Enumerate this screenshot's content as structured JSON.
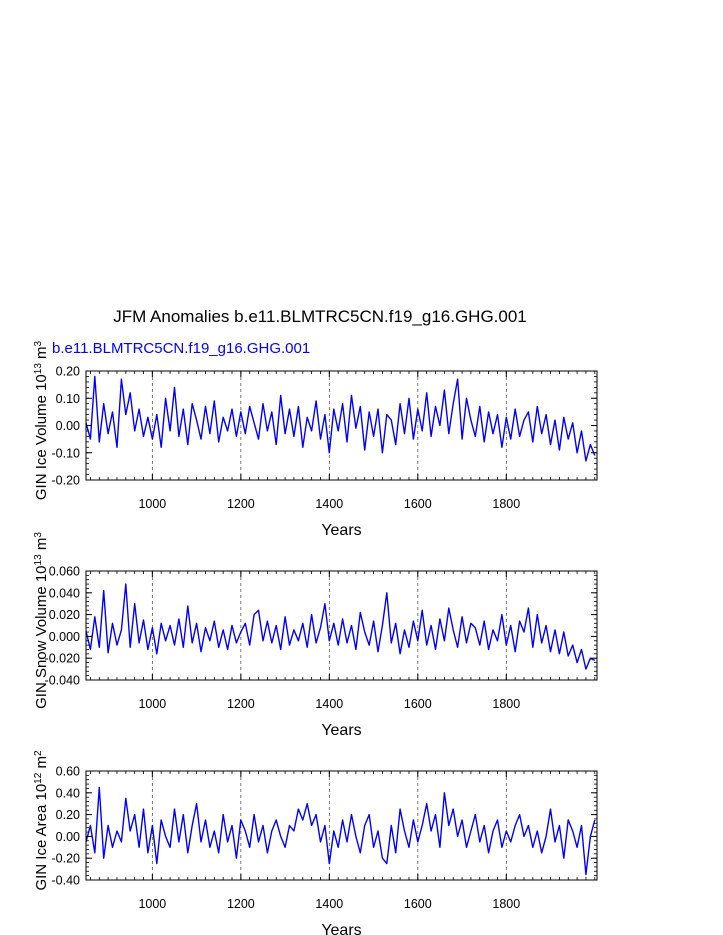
{
  "figure": {
    "title": "JFM Anomalies b.e11.BLMTRC5CN.f19_g16.GHG.001",
    "case_label": "b.e11.BLMTRC5CN.f19_g16.GHG.001"
  },
  "colors": {
    "series": "#0000ff",
    "axes": "#000000",
    "grid": "#555555"
  },
  "chart_data": [
    {
      "type": "line",
      "title": "",
      "xlabel": "Years",
      "ylabel": {
        "text": "GIN Ice Volume 10",
        "exp": "13",
        "unit": " m",
        "unit_exp": "3"
      },
      "xlim": [
        850,
        2005
      ],
      "ylim": [
        -0.2,
        0.2
      ],
      "xticks": [
        1000,
        1200,
        1400,
        1600,
        1800
      ],
      "xtick_labels": [
        "1000",
        "1200",
        "1400",
        "1600",
        "1800"
      ],
      "yticks": [
        -0.2,
        -0.1,
        0.0,
        0.1,
        0.2
      ],
      "ytick_labels": [
        "-0.20",
        "-0.10",
        "0.00",
        "0.10",
        "0.20"
      ],
      "grid": "vertical dashed at x ticks",
      "series": [
        {
          "x": [
            850,
            860,
            870,
            880,
            890,
            900,
            910,
            920,
            930,
            940,
            950,
            960,
            970,
            980,
            990,
            1000,
            1010,
            1020,
            1030,
            1040,
            1050,
            1060,
            1070,
            1080,
            1090,
            1100,
            1110,
            1120,
            1130,
            1140,
            1150,
            1160,
            1170,
            1180,
            1190,
            1200,
            1210,
            1220,
            1230,
            1240,
            1250,
            1260,
            1270,
            1280,
            1290,
            1300,
            1310,
            1320,
            1330,
            1340,
            1350,
            1360,
            1370,
            1380,
            1390,
            1400,
            1410,
            1420,
            1430,
            1440,
            1450,
            1460,
            1470,
            1480,
            1490,
            1500,
            1510,
            1520,
            1530,
            1540,
            1550,
            1560,
            1570,
            1580,
            1590,
            1600,
            1610,
            1620,
            1630,
            1640,
            1650,
            1660,
            1670,
            1680,
            1690,
            1700,
            1710,
            1720,
            1730,
            1740,
            1750,
            1760,
            1770,
            1780,
            1790,
            1800,
            1810,
            1820,
            1830,
            1840,
            1850,
            1860,
            1870,
            1880,
            1890,
            1900,
            1910,
            1920,
            1930,
            1940,
            1950,
            1960,
            1970,
            1980,
            1990,
            2000
          ],
          "values": [
            0.01,
            -0.05,
            0.18,
            -0.06,
            0.08,
            -0.03,
            0.05,
            -0.08,
            0.17,
            0.04,
            0.12,
            -0.02,
            0.06,
            -0.04,
            0.03,
            -0.05,
            0.04,
            -0.08,
            0.1,
            -0.02,
            0.14,
            -0.04,
            0.06,
            -0.07,
            0.08,
            0.02,
            -0.05,
            0.07,
            -0.03,
            0.09,
            -0.06,
            0.03,
            -0.02,
            0.06,
            -0.04,
            0.05,
            -0.03,
            0.07,
            0.01,
            -0.05,
            0.08,
            -0.02,
            0.05,
            -0.07,
            0.11,
            -0.03,
            0.06,
            -0.04,
            0.07,
            -0.08,
            0.03,
            -0.02,
            0.09,
            -0.05,
            0.04,
            -0.1,
            0.06,
            -0.02,
            0.08,
            -0.06,
            0.11,
            -0.01,
            0.07,
            -0.09,
            0.05,
            -0.04,
            0.06,
            -0.1,
            0.04,
            0.02,
            -0.07,
            0.08,
            -0.03,
            0.1,
            -0.05,
            0.06,
            -0.02,
            0.12,
            -0.04,
            0.07,
            0.0,
            0.13,
            -0.03,
            0.08,
            0.17,
            -0.05,
            0.1,
            0.02,
            -0.04,
            0.07,
            -0.06,
            0.05,
            -0.03,
            0.04,
            -0.08,
            0.03,
            -0.05,
            0.06,
            -0.04,
            0.02,
            0.05,
            -0.06,
            0.07,
            -0.03,
            0.04,
            -0.07,
            0.02,
            -0.09,
            0.03,
            -0.05,
            0.01,
            -0.1,
            -0.02,
            -0.13,
            -0.07,
            -0.11
          ]
        }
      ]
    },
    {
      "type": "line",
      "title": "",
      "xlabel": "Years",
      "ylabel": {
        "text": "GIN Snow Volume 10",
        "exp": "13",
        "unit": " m",
        "unit_exp": "3"
      },
      "xlim": [
        850,
        2005
      ],
      "ylim": [
        -0.04,
        0.06
      ],
      "xticks": [
        1000,
        1200,
        1400,
        1600,
        1800
      ],
      "xtick_labels": [
        "1000",
        "1200",
        "1400",
        "1600",
        "1800"
      ],
      "yticks": [
        -0.04,
        -0.02,
        0.0,
        0.02,
        0.04,
        0.06
      ],
      "ytick_labels": [
        "-0.040",
        "-0.020",
        "0.000",
        "0.020",
        "0.040",
        "0.060"
      ],
      "grid": "vertical dashed at x ticks",
      "series": [
        {
          "x": [
            850,
            860,
            870,
            880,
            890,
            900,
            910,
            920,
            930,
            940,
            950,
            960,
            970,
            980,
            990,
            1000,
            1010,
            1020,
            1030,
            1040,
            1050,
            1060,
            1070,
            1080,
            1090,
            1100,
            1110,
            1120,
            1130,
            1140,
            1150,
            1160,
            1170,
            1180,
            1190,
            1200,
            1210,
            1220,
            1230,
            1240,
            1250,
            1260,
            1270,
            1280,
            1290,
            1300,
            1310,
            1320,
            1330,
            1340,
            1350,
            1360,
            1370,
            1380,
            1390,
            1400,
            1410,
            1420,
            1430,
            1440,
            1450,
            1460,
            1470,
            1480,
            1490,
            1500,
            1510,
            1520,
            1530,
            1540,
            1550,
            1560,
            1570,
            1580,
            1590,
            1600,
            1610,
            1620,
            1630,
            1640,
            1650,
            1660,
            1670,
            1680,
            1690,
            1700,
            1710,
            1720,
            1730,
            1740,
            1750,
            1760,
            1770,
            1780,
            1790,
            1800,
            1810,
            1820,
            1830,
            1840,
            1850,
            1860,
            1870,
            1880,
            1890,
            1900,
            1910,
            1920,
            1930,
            1940,
            1950,
            1960,
            1970,
            1980,
            1990,
            2000
          ],
          "values": [
            0.005,
            -0.012,
            0.018,
            -0.01,
            0.042,
            -0.015,
            0.012,
            -0.008,
            0.006,
            0.048,
            -0.01,
            0.03,
            -0.006,
            0.015,
            -0.012,
            0.008,
            -0.016,
            0.012,
            -0.004,
            0.01,
            -0.008,
            0.016,
            -0.01,
            0.028,
            -0.006,
            0.012,
            -0.014,
            0.008,
            -0.004,
            0.014,
            -0.01,
            0.006,
            -0.012,
            0.01,
            -0.006,
            0.004,
            0.012,
            -0.008,
            0.02,
            0.024,
            -0.004,
            0.014,
            -0.006,
            0.01,
            -0.012,
            0.018,
            -0.008,
            0.006,
            -0.004,
            0.012,
            -0.01,
            0.02,
            -0.006,
            0.008,
            0.03,
            -0.004,
            0.012,
            -0.008,
            0.016,
            -0.006,
            0.01,
            -0.012,
            0.022,
            0.004,
            -0.008,
            0.014,
            -0.014,
            0.01,
            0.04,
            -0.006,
            0.012,
            -0.016,
            0.006,
            -0.01,
            0.014,
            -0.004,
            0.024,
            -0.008,
            0.01,
            -0.012,
            0.016,
            -0.004,
            0.026,
            0.006,
            -0.01,
            0.018,
            -0.006,
            0.012,
            0.008,
            -0.008,
            0.014,
            -0.012,
            0.006,
            -0.004,
            0.02,
            -0.008,
            0.01,
            -0.014,
            0.014,
            0.004,
            0.026,
            -0.01,
            0.02,
            -0.006,
            0.01,
            -0.014,
            0.006,
            -0.016,
            0.004,
            -0.018,
            -0.008,
            -0.024,
            -0.012,
            -0.03,
            -0.02,
            -0.022
          ]
        }
      ]
    },
    {
      "type": "line",
      "title": "",
      "xlabel": "Years",
      "ylabel": {
        "text": "GIN Ice Area 10",
        "exp": "12",
        "unit": " m",
        "unit_exp": "2"
      },
      "xlim": [
        850,
        2005
      ],
      "ylim": [
        -0.4,
        0.6
      ],
      "xticks": [
        1000,
        1200,
        1400,
        1600,
        1800
      ],
      "xtick_labels": [
        "1000",
        "1200",
        "1400",
        "1600",
        "1800"
      ],
      "yticks": [
        -0.4,
        -0.2,
        0.0,
        0.2,
        0.4,
        0.6
      ],
      "ytick_labels": [
        "-0.40",
        "-0.20",
        "0.00",
        "0.20",
        "0.40",
        "0.60"
      ],
      "grid": "vertical dashed at x ticks",
      "series": [
        {
          "x": [
            850,
            860,
            870,
            880,
            890,
            900,
            910,
            920,
            930,
            940,
            950,
            960,
            970,
            980,
            990,
            1000,
            1010,
            1020,
            1030,
            1040,
            1050,
            1060,
            1070,
            1080,
            1090,
            1100,
            1110,
            1120,
            1130,
            1140,
            1150,
            1160,
            1170,
            1180,
            1190,
            1200,
            1210,
            1220,
            1230,
            1240,
            1250,
            1260,
            1270,
            1280,
            1290,
            1300,
            1310,
            1320,
            1330,
            1340,
            1350,
            1360,
            1370,
            1380,
            1390,
            1400,
            1410,
            1420,
            1430,
            1440,
            1450,
            1460,
            1470,
            1480,
            1490,
            1500,
            1510,
            1520,
            1530,
            1540,
            1550,
            1560,
            1570,
            1580,
            1590,
            1600,
            1610,
            1620,
            1630,
            1640,
            1650,
            1660,
            1670,
            1680,
            1690,
            1700,
            1710,
            1720,
            1730,
            1740,
            1750,
            1760,
            1770,
            1780,
            1790,
            1800,
            1810,
            1820,
            1830,
            1840,
            1850,
            1860,
            1870,
            1880,
            1890,
            1900,
            1910,
            1920,
            1930,
            1940,
            1950,
            1960,
            1970,
            1980,
            1990,
            2000
          ],
          "values": [
            -0.05,
            0.1,
            -0.15,
            0.45,
            -0.2,
            0.1,
            -0.1,
            0.05,
            -0.05,
            0.35,
            0.05,
            0.2,
            -0.1,
            0.25,
            -0.15,
            0.1,
            -0.25,
            0.15,
            0.0,
            -0.1,
            0.25,
            -0.05,
            0.2,
            -0.15,
            0.1,
            0.3,
            -0.05,
            0.15,
            -0.1,
            0.05,
            -0.15,
            0.2,
            -0.05,
            0.1,
            -0.2,
            0.15,
            0.05,
            -0.1,
            0.2,
            -0.05,
            0.1,
            -0.15,
            0.05,
            0.15,
            0.0,
            -0.1,
            0.1,
            0.05,
            0.25,
            0.15,
            0.3,
            0.1,
            0.2,
            -0.05,
            0.1,
            -0.25,
            0.05,
            -0.1,
            0.15,
            -0.05,
            0.2,
            0.0,
            -0.15,
            0.1,
            0.2,
            -0.1,
            0.05,
            -0.2,
            -0.25,
            0.1,
            -0.15,
            0.25,
            0.05,
            -0.1,
            0.15,
            -0.05,
            0.1,
            0.3,
            0.05,
            0.2,
            -0.1,
            0.4,
            0.1,
            0.25,
            0.0,
            0.15,
            -0.1,
            0.05,
            0.2,
            -0.05,
            0.1,
            -0.15,
            0.05,
            0.15,
            -0.1,
            0.05,
            -0.05,
            0.1,
            0.2,
            0.0,
            0.1,
            -0.1,
            0.05,
            -0.15,
            0.0,
            0.25,
            -0.05,
            0.1,
            -0.2,
            0.15,
            0.05,
            -0.1,
            0.1,
            -0.35,
            0.0,
            0.15
          ]
        }
      ]
    }
  ]
}
